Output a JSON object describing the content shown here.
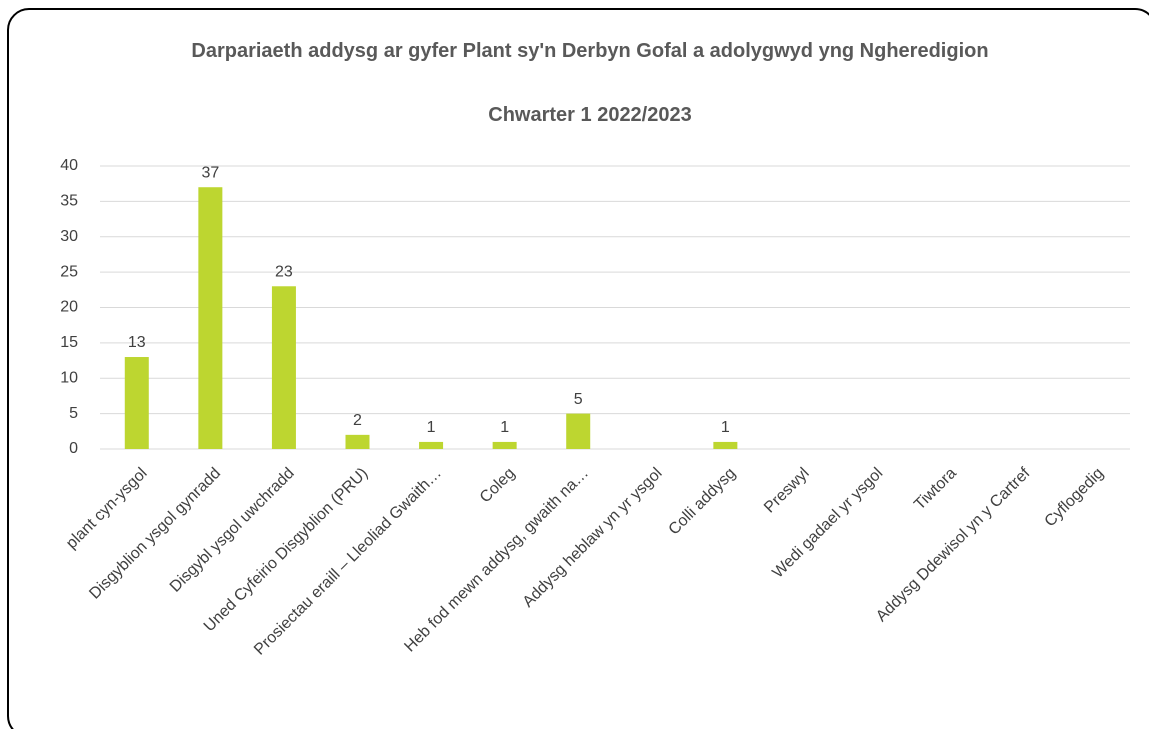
{
  "chart_data": {
    "type": "bar",
    "title": "Darpariaeth addysg ar gyfer Plant sy'n Derbyn Gofal a adolygwyd yng Ngheredigion",
    "subtitle": "Chwarter 1  2022/2023",
    "categories": [
      "plant cyn-ysgol",
      "Disgyblion ysgol gynradd",
      "Disgybl ysgol uwchradd",
      "Uned Cyfeirio Disgyblion (PRU)",
      "Prosiectau eraill – Lleoliad Gwaith…",
      "Coleg",
      "Heb fod mewn addysg, gwaith na…",
      "Addysg heblaw yn yr ysgol",
      "Colli addysg",
      "Preswyl",
      "Wedi gadael yr ysgol",
      "Tiwtora",
      "Addysg Ddewisol yn y Cartref",
      "Cyflogedig"
    ],
    "values": [
      13,
      37,
      23,
      2,
      1,
      1,
      5,
      null,
      1,
      null,
      null,
      null,
      null,
      null
    ],
    "color": "#bdd630",
    "ylim": [
      0,
      40
    ],
    "yticks": [
      0,
      5,
      10,
      15,
      20,
      25,
      30,
      35,
      40
    ],
    "grid": true
  }
}
